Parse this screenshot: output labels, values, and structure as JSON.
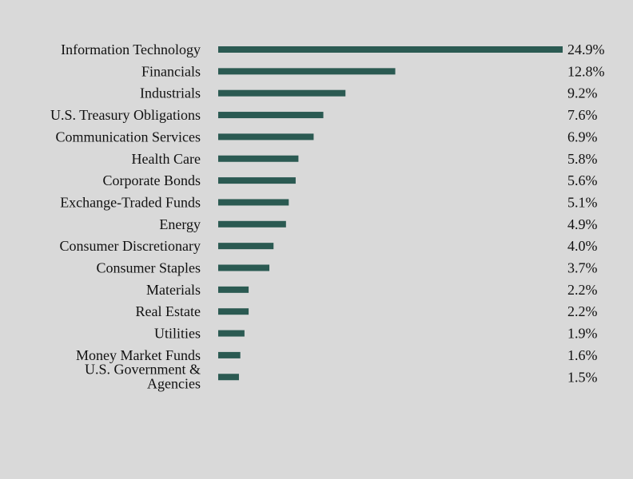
{
  "chart_data": {
    "type": "bar",
    "orientation": "horizontal",
    "categories": [
      "Information Technology",
      "Financials",
      "Industrials",
      "U.S. Treasury Obligations",
      "Communication Services",
      "Health Care",
      "Corporate Bonds",
      "Exchange-Traded Funds",
      "Energy",
      "Consumer Discretionary",
      "Consumer Staples",
      "Materials",
      "Real Estate",
      "Utilities",
      "Money Market Funds",
      "U.S. Government & Agencies"
    ],
    "values": [
      24.9,
      12.8,
      9.2,
      7.6,
      6.9,
      5.8,
      5.6,
      5.1,
      4.9,
      4.0,
      3.7,
      2.2,
      2.2,
      1.9,
      1.6,
      1.5
    ],
    "value_labels": [
      "24.9%",
      "12.8%",
      "9.2%",
      "7.6%",
      "6.9%",
      "5.8%",
      "5.6%",
      "5.1%",
      "4.9%",
      "4.0%",
      "3.7%",
      "2.2%",
      "2.2%",
      "1.9%",
      "1.6%",
      "1.5%"
    ],
    "xlim": [
      0,
      24.9
    ],
    "grid": false,
    "legend": "none",
    "title": "",
    "xlabel": "",
    "ylabel": "",
    "colors": {
      "bar": "#2b5a52",
      "background": "#d9d9d9",
      "text": "#111111"
    }
  }
}
